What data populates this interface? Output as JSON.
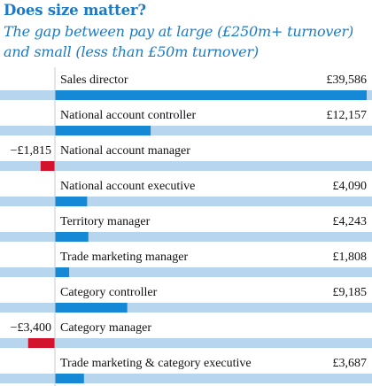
{
  "title": "Does size matter?",
  "subtitle": "The gap between pay at large (£250m+ turnover) and small (less than £50m turnover)",
  "colors": {
    "positive": "#1589d6",
    "negative": "#d3122c",
    "track": "#b7d6ee",
    "title": "#1a7bc4"
  },
  "chart_data": {
    "type": "bar",
    "title": "Does size matter?",
    "subtitle": "The gap between pay at large (£250m+ turnover) and small (less than £50m turnover)",
    "categories": [
      "Sales director",
      "National account controller",
      "National account manager",
      "National account executive",
      "Territory manager",
      "Trade marketing manager",
      "Category controller",
      "Category manager",
      "Trade marketing & category executive"
    ],
    "values": [
      39586,
      12157,
      -1815,
      4090,
      4243,
      1808,
      9185,
      -3400,
      3687
    ],
    "value_labels": [
      "£39,586",
      "£12,157",
      "−£1,815",
      "£4,090",
      "£4,243",
      "£1,808",
      "£9,185",
      "−£3,400",
      "£3,687"
    ],
    "xlim": [
      -3400,
      39586
    ],
    "grid": false
  }
}
